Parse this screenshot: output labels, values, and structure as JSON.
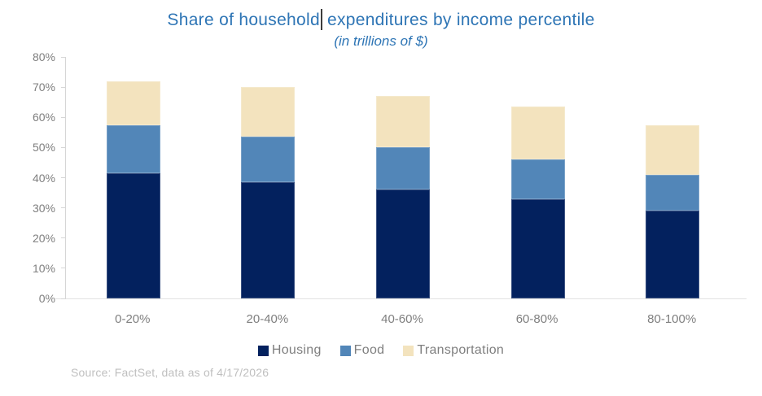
{
  "title": {
    "part1": "Share of household",
    "part2": "expenditures by income percentile",
    "subtitle": "(in trillions of $)"
  },
  "chart_data": {
    "type": "bar",
    "stacked": true,
    "title": "Share of household expenditures by income percentile",
    "subtitle": "(in trillions of $)",
    "categories": [
      "0-20%",
      "20-40%",
      "40-60%",
      "60-80%",
      "80-100%"
    ],
    "series": [
      {
        "name": "Housing",
        "color": "#03215E",
        "values": [
          41.5,
          38.5,
          36,
          33,
          29
        ]
      },
      {
        "name": "Food",
        "color": "#5286B8",
        "values": [
          16,
          15,
          14,
          13,
          12
        ]
      },
      {
        "name": "Transportation",
        "color": "#F3E3BE",
        "values": [
          14.5,
          16.5,
          17,
          17.5,
          16.5
        ]
      }
    ],
    "stack_totals": [
      72,
      70,
      67,
      63.5,
      57.5
    ],
    "xlabel": "",
    "ylabel": "",
    "ylim": [
      0,
      80
    ],
    "ytick_step": 10,
    "yticks": [
      "0%",
      "10%",
      "20%",
      "30%",
      "40%",
      "50%",
      "60%",
      "70%",
      "80%"
    ],
    "grid": false,
    "legend_position": "bottom"
  },
  "legend": {
    "items": [
      {
        "label": "Housing",
        "color": "#03215E"
      },
      {
        "label": "Food",
        "color": "#5286B8"
      },
      {
        "label": "Transportation",
        "color": "#F3E3BE"
      }
    ]
  },
  "source": "Source: FactSet, data as of 4/17/2026",
  "colors": {
    "title_text": "#2E75B5",
    "axis_line": "#D6D6D6",
    "axis_labels": "#7F7F7F",
    "source_text": "#BFBFBF",
    "background": "#FFFFFF"
  }
}
